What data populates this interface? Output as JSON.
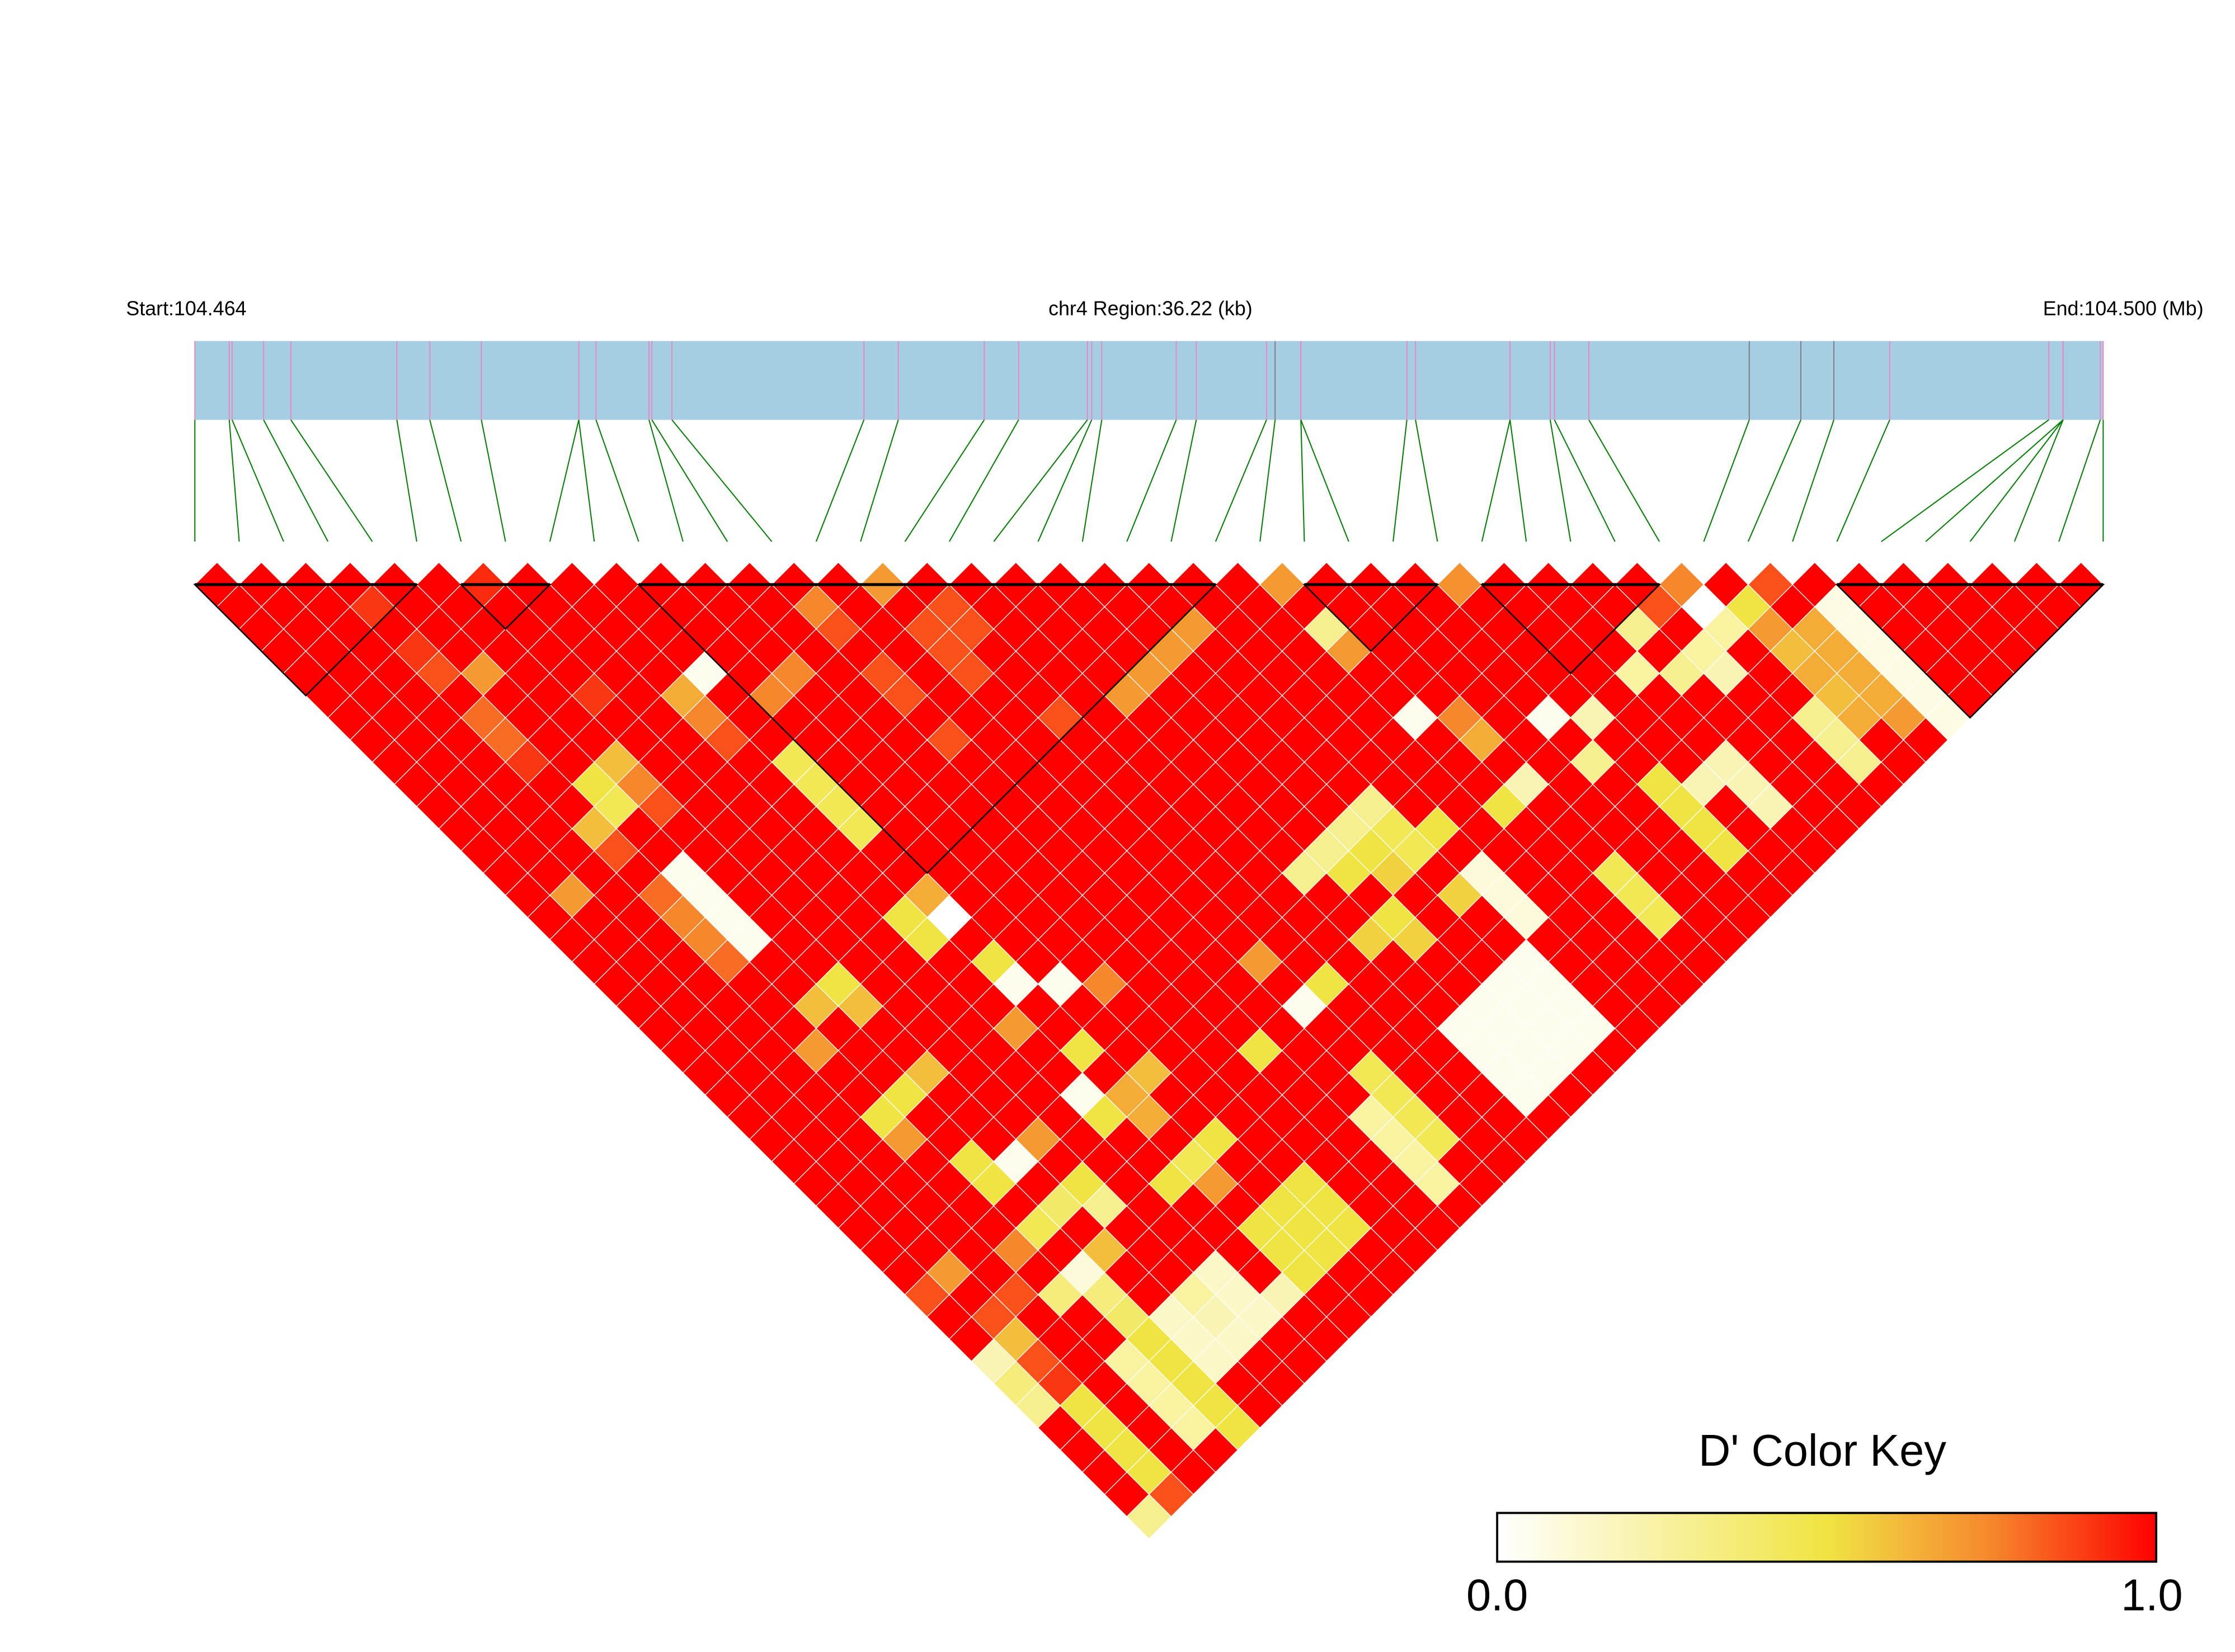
{
  "chart_data": {
    "type": "heatmap",
    "subtype": "LD triangle (D')",
    "region": {
      "start_label": "Start:104.464",
      "center_label": "chr4 Region:36.22 (kb)",
      "end_label": "End:104.500 (Mb)",
      "chromosome": "chr4",
      "start_mb": 104.464,
      "end_mb": 104.50022,
      "length_kb": 36.22
    },
    "snp_positions_mb": [
      104.464,
      104.464653,
      104.464707,
      104.465305,
      104.465822,
      104.467834,
      104.468459,
      104.469438,
      104.471287,
      104.471287,
      104.471614,
      104.47262,
      104.472674,
      104.473055,
      104.476699,
      104.477351,
      104.478983,
      104.479635,
      104.480941,
      104.481022,
      104.481213,
      104.482627,
      104.483007,
      104.48434,
      104.484503,
      104.484992,
      104.484992,
      104.487004,
      104.487168,
      104.488962,
      104.488962,
      104.489724,
      104.489805,
      104.490458,
      104.493503,
      104.494482,
      104.495108,
      104.496168,
      104.499187,
      104.499458,
      104.499458,
      104.499458,
      104.500165,
      104.50022
    ],
    "snp_marker_color": "#E78AC3",
    "snp_marker_alt_color": "#808080",
    "snp_marker_alt_indices": [
      24,
      34,
      35,
      36
    ],
    "region_bar_color": "#A6CEE3",
    "connector_color": "#008000",
    "ld_blocks": [
      [
        0,
        5
      ],
      [
        6,
        8
      ],
      [
        10,
        23
      ],
      [
        25,
        28
      ],
      [
        29,
        33
      ],
      [
        37,
        43
      ]
    ],
    "dprime_default": 1.0,
    "dprime_pairs": [
      [
        6,
        7,
        0.92
      ],
      [
        15,
        16,
        0.7
      ],
      [
        24,
        25,
        0.7
      ],
      [
        28,
        29,
        0.72
      ],
      [
        33,
        34,
        0.75
      ],
      [
        35,
        36,
        0.85
      ],
      [
        3,
        5,
        0.9
      ],
      [
        3,
        7,
        0.9
      ],
      [
        3,
        8,
        0.85
      ],
      [
        4,
        9,
        0.7
      ],
      [
        3,
        10,
        0.8
      ],
      [
        3,
        11,
        0.8
      ],
      [
        3,
        12,
        0.9
      ],
      [
        6,
        12,
        0.9
      ],
      [
        9,
        14,
        0.05
      ],
      [
        8,
        14,
        0.65
      ],
      [
        8,
        15,
        0.75
      ],
      [
        8,
        16,
        0.85
      ],
      [
        11,
        16,
        0.75
      ],
      [
        10,
        16,
        0.75
      ],
      [
        13,
        15,
        0.75
      ],
      [
        13,
        16,
        0.85
      ],
      [
        5,
        14,
        0.6
      ],
      [
        4,
        14,
        0.5
      ],
      [
        4,
        15,
        0.45
      ],
      [
        5,
        15,
        0.75
      ],
      [
        5,
        16,
        0.85
      ],
      [
        3,
        15,
        0.6
      ],
      [
        3,
        16,
        0.85
      ],
      [
        9,
        18,
        0.45
      ],
      [
        9,
        19,
        0.45
      ],
      [
        9,
        20,
        0.45
      ],
      [
        9,
        21,
        0.45
      ],
      [
        4,
        18,
        0.05
      ],
      [
        4,
        19,
        0.05
      ],
      [
        4,
        20,
        0.05
      ],
      [
        4,
        21,
        0.05
      ],
      [
        3,
        18,
        0.8
      ],
      [
        3,
        19,
        0.75
      ],
      [
        3,
        20,
        0.75
      ],
      [
        3,
        21,
        0.8
      ],
      [
        1,
        16,
        0.7
      ],
      [
        16,
        18,
        0.85
      ],
      [
        16,
        19,
        0.85
      ],
      [
        15,
        18,
        0.85
      ],
      [
        15,
        19,
        0.85
      ],
      [
        13,
        18,
        0.85
      ],
      [
        13,
        19,
        0.85
      ],
      [
        15,
        20,
        0.85
      ],
      [
        16,
        23,
        0.85
      ],
      [
        13,
        21,
        0.85
      ],
      [
        18,
        24,
        0.7
      ],
      [
        19,
        24,
        0.7
      ],
      [
        20,
        24,
        0.7
      ],
      [
        21,
        24,
        0.7
      ],
      [
        5,
        24,
        0.5
      ],
      [
        4,
        24,
        0.6
      ],
      [
        5,
        25,
        0.6
      ],
      [
        3,
        25,
        0.7
      ],
      [
        8,
        24,
        0.5
      ],
      [
        9,
        24,
        0.65
      ],
      [
        9,
        25,
        0.0
      ],
      [
        8,
        25,
        0.5
      ],
      [
        9,
        27,
        0.5
      ],
      [
        9,
        28,
        0.05
      ],
      [
        10,
        29,
        0.05
      ],
      [
        8,
        29,
        0.7
      ],
      [
        4,
        28,
        0.5
      ],
      [
        5,
        28,
        0.6
      ],
      [
        3,
        28,
        0.5
      ],
      [
        3,
        29,
        0.7
      ],
      [
        9,
        31,
        0.5
      ],
      [
        8,
        32,
        0.05
      ],
      [
        10,
        33,
        0.6
      ],
      [
        9,
        33,
        0.65
      ],
      [
        8,
        33,
        0.5
      ],
      [
        6,
        32,
        0.7
      ],
      [
        4,
        31,
        0.5
      ],
      [
        5,
        32,
        0.05
      ],
      [
        4,
        32,
        0.5
      ],
      [
        5,
        34,
        0.4
      ],
      [
        4,
        34,
        0.45
      ],
      [
        6,
        34,
        0.5
      ],
      [
        6,
        35,
        0.3
      ],
      [
        4,
        36,
        0.1
      ],
      [
        5,
        36,
        0.6
      ],
      [
        3,
        34,
        0.75
      ],
      [
        1,
        33,
        0.7
      ],
      [
        0,
        33,
        0.85
      ],
      [
        0,
        43,
        0.3
      ],
      [
        1,
        43,
        0.85
      ],
      [
        1,
        42,
        0.5
      ],
      [
        1,
        41,
        0.5
      ],
      [
        1,
        40,
        0.5
      ],
      [
        3,
        42,
        0.25
      ],
      [
        4,
        43,
        0.5
      ],
      [
        0,
        38,
        0.3
      ],
      [
        1,
        39,
        0.5
      ],
      [
        3,
        41,
        0.25
      ],
      [
        4,
        42,
        0.5
      ],
      [
        0,
        37,
        0.35
      ],
      [
        1,
        38,
        0.9
      ],
      [
        3,
        40,
        0.25
      ],
      [
        4,
        41,
        0.5
      ],
      [
        0,
        36,
        0.2
      ],
      [
        1,
        37,
        0.85
      ],
      [
        3,
        39,
        0.25
      ],
      [
        4,
        40,
        0.5
      ],
      [
        5,
        41,
        0.15
      ],
      [
        1,
        36,
        0.6
      ],
      [
        4,
        39,
        0.5
      ],
      [
        5,
        40,
        0.15
      ],
      [
        6,
        41,
        0.15
      ],
      [
        1,
        35,
        0.85
      ],
      [
        4,
        38,
        0.4
      ],
      [
        5,
        39,
        0.15
      ],
      [
        6,
        40,
        0.2
      ],
      [
        2,
        35,
        0.85
      ],
      [
        3,
        36,
        0.35
      ],
      [
        4,
        37,
        0.35
      ],
      [
        6,
        39,
        0.25
      ],
      [
        11,
        30,
        0.75
      ],
      [
        15,
        33,
        0.7
      ],
      [
        13,
        35,
        0.5
      ],
      [
        16,
        35,
        0.5
      ],
      [
        15,
        35,
        0.05
      ],
      [
        9,
        34,
        0.65
      ],
      [
        10,
        36,
        0.5
      ],
      [
        8,
        36,
        0.5
      ],
      [
        9,
        36,
        0.45
      ],
      [
        9,
        37,
        0.7
      ],
      [
        9,
        39,
        0.5
      ],
      [
        9,
        40,
        0.5
      ],
      [
        9,
        41,
        0.5
      ],
      [
        10,
        39,
        0.5
      ],
      [
        10,
        40,
        0.5
      ],
      [
        10,
        41,
        0.5
      ],
      [
        11,
        39,
        0.5
      ],
      [
        11,
        40,
        0.5
      ],
      [
        11,
        41,
        0.5
      ],
      [
        7,
        39,
        0.15
      ],
      [
        7,
        40,
        0.15
      ],
      [
        7,
        41,
        0.15
      ],
      [
        8,
        41,
        0.2
      ],
      [
        15,
        38,
        0.45
      ],
      [
        15,
        39,
        0.45
      ],
      [
        15,
        40,
        0.45
      ],
      [
        15,
        41,
        0.45
      ],
      [
        14,
        39,
        0.25
      ],
      [
        14,
        40,
        0.25
      ],
      [
        14,
        41,
        0.25
      ],
      [
        14,
        42,
        0.25
      ],
      [
        18,
        39,
        0.05
      ],
      [
        18,
        40,
        0.05
      ],
      [
        18,
        41,
        0.05
      ],
      [
        18,
        42,
        0.05
      ],
      [
        19,
        39,
        0.05
      ],
      [
        19,
        40,
        0.05
      ],
      [
        19,
        41,
        0.05
      ],
      [
        19,
        42,
        0.05
      ],
      [
        20,
        39,
        0.05
      ],
      [
        20,
        40,
        0.05
      ],
      [
        20,
        41,
        0.05
      ],
      [
        20,
        42,
        0.05
      ],
      [
        21,
        39,
        0.05
      ],
      [
        21,
        40,
        0.05
      ],
      [
        21,
        41,
        0.05
      ],
      [
        21,
        42,
        0.05
      ],
      [
        18,
        32,
        0.3
      ],
      [
        19,
        32,
        0.3
      ],
      [
        20,
        32,
        0.3
      ],
      [
        21,
        32,
        0.3
      ],
      [
        20,
        33,
        0.5
      ],
      [
        19,
        33,
        0.5
      ],
      [
        20,
        34,
        0.55
      ],
      [
        21,
        36,
        0.55
      ],
      [
        19,
        35,
        0.5
      ],
      [
        18,
        35,
        0.55
      ],
      [
        19,
        36,
        0.55
      ],
      [
        21,
        33,
        0.45
      ],
      [
        21,
        34,
        0.45
      ],
      [
        22,
        34,
        0.5
      ],
      [
        22,
        36,
        0.1
      ],
      [
        22,
        37,
        0.1
      ],
      [
        22,
        38,
        0.1
      ],
      [
        25,
        39,
        0.45
      ],
      [
        25,
        40,
        0.45
      ],
      [
        25,
        41,
        0.45
      ],
      [
        28,
        38,
        0.5
      ],
      [
        28,
        39,
        0.5
      ],
      [
        28,
        40,
        0.5
      ],
      [
        28,
        41,
        0.5
      ],
      [
        30,
        40,
        0.2
      ],
      [
        30,
        41,
        0.2
      ],
      [
        29,
        39,
        0.2
      ],
      [
        30,
        39,
        0.2
      ],
      [
        24,
        31,
        0.05
      ],
      [
        27,
        34,
        0.05
      ],
      [
        24,
        27,
        0.3
      ],
      [
        31,
        34,
        0.3
      ],
      [
        24,
        28,
        0.7
      ],
      [
        25,
        32,
        0.75
      ],
      [
        25,
        33,
        0.65
      ],
      [
        25,
        35,
        0.2
      ],
      [
        24,
        35,
        0.5
      ],
      [
        28,
        35,
        0.2
      ],
      [
        30,
        35,
        0.25
      ],
      [
        27,
        36,
        0.3
      ],
      [
        33,
        35,
        0.0
      ],
      [
        33,
        36,
        0.25
      ],
      [
        34,
        36,
        0.5
      ],
      [
        32,
        34,
        0.85
      ],
      [
        32,
        36,
        0.25
      ],
      [
        32,
        37,
        0.2
      ],
      [
        31,
        36,
        0.3
      ],
      [
        34,
        37,
        0.7
      ],
      [
        34,
        38,
        0.6
      ],
      [
        34,
        39,
        0.65
      ],
      [
        34,
        40,
        0.6
      ],
      [
        34,
        41,
        0.65
      ],
      [
        35,
        38,
        0.65
      ],
      [
        35,
        39,
        0.65
      ],
      [
        35,
        40,
        0.65
      ],
      [
        35,
        41,
        0.65
      ],
      [
        35,
        42,
        0.7
      ],
      [
        36,
        38,
        0.08
      ],
      [
        36,
        39,
        0.08
      ],
      [
        36,
        40,
        0.08
      ],
      [
        36,
        41,
        0.08
      ],
      [
        36,
        42,
        0.08
      ],
      [
        36,
        43,
        0.08
      ],
      [
        33,
        40,
        0.3
      ],
      [
        33,
        41,
        0.3
      ],
      [
        33,
        42,
        0.3
      ]
    ],
    "color_key": {
      "title": "D' Color Key",
      "min_label": "0.0",
      "max_label": "1.0",
      "range": [
        0.0,
        1.0
      ],
      "stops": [
        {
          "value": 0.0,
          "color": "#FFFFFF"
        },
        {
          "value": 0.5,
          "color": "#F0E442"
        },
        {
          "value": 0.6,
          "color": "#F3BE3C"
        },
        {
          "value": 0.75,
          "color": "#F6872C"
        },
        {
          "value": 1.0,
          "color": "#FF0000"
        }
      ]
    }
  }
}
